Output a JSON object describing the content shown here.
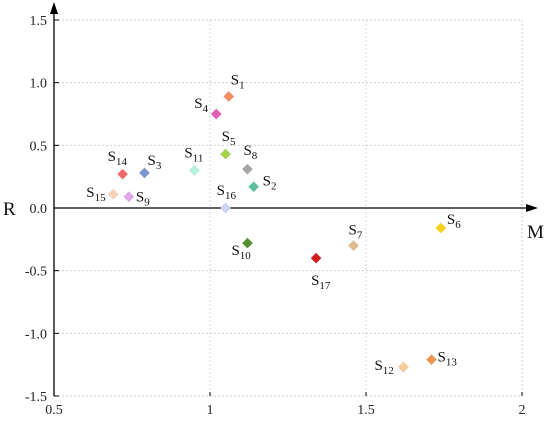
{
  "chart_data": {
    "type": "scatter",
    "title": "",
    "xlabel": "M",
    "ylabel": "R",
    "xlim": [
      0.5,
      2.0
    ],
    "ylim": [
      -1.5,
      1.5
    ],
    "x_ticks": [
      "0.5",
      "1",
      "1.5",
      "2"
    ],
    "y_ticks": [
      "1.5",
      "1.0",
      "0.5",
      "0.0",
      "-0.5",
      "-1.0",
      "-1.5"
    ],
    "grid": true,
    "axes_through_origin": true,
    "marker": "diamond",
    "points": [
      {
        "label": "S",
        "sub": "1",
        "x": 1.06,
        "y": 0.89,
        "color": "#f28a63"
      },
      {
        "label": "S",
        "sub": "2",
        "x": 1.14,
        "y": 0.17,
        "color": "#5ec09e"
      },
      {
        "label": "S",
        "sub": "3",
        "x": 0.79,
        "y": 0.28,
        "color": "#7b96d0"
      },
      {
        "label": "S",
        "sub": "4",
        "x": 1.02,
        "y": 0.75,
        "color": "#e25db5"
      },
      {
        "label": "S",
        "sub": "5",
        "x": 1.05,
        "y": 0.43,
        "color": "#a5d44a"
      },
      {
        "label": "S",
        "sub": "6",
        "x": 1.74,
        "y": -0.16,
        "color": "#ffd316"
      },
      {
        "label": "S",
        "sub": "7",
        "x": 1.46,
        "y": -0.3,
        "color": "#e3bc8e"
      },
      {
        "label": "S",
        "sub": "8",
        "x": 1.12,
        "y": 0.31,
        "color": "#a6a6a6"
      },
      {
        "label": "S",
        "sub": "9",
        "x": 0.74,
        "y": 0.09,
        "color": "#e2a6ee"
      },
      {
        "label": "S",
        "sub": "10",
        "x": 1.12,
        "y": -0.28,
        "color": "#4f8f2c"
      },
      {
        "label": "S",
        "sub": "11",
        "x": 0.95,
        "y": 0.3,
        "color": "#b7f2dd"
      },
      {
        "label": "S",
        "sub": "12",
        "x": 1.62,
        "y": -1.27,
        "color": "#f6cd97"
      },
      {
        "label": "S",
        "sub": "13",
        "x": 1.71,
        "y": -1.21,
        "color": "#f29550"
      },
      {
        "label": "S",
        "sub": "14",
        "x": 0.72,
        "y": 0.27,
        "color": "#f26a6a"
      },
      {
        "label": "S",
        "sub": "15",
        "x": 0.69,
        "y": 0.11,
        "color": "#f8d3b5"
      },
      {
        "label": "S",
        "sub": "16",
        "x": 1.05,
        "y": 0.0,
        "color": "#ccd6f2"
      },
      {
        "label": "S",
        "sub": "17",
        "x": 1.34,
        "y": -0.4,
        "color": "#d51a1a"
      }
    ]
  }
}
